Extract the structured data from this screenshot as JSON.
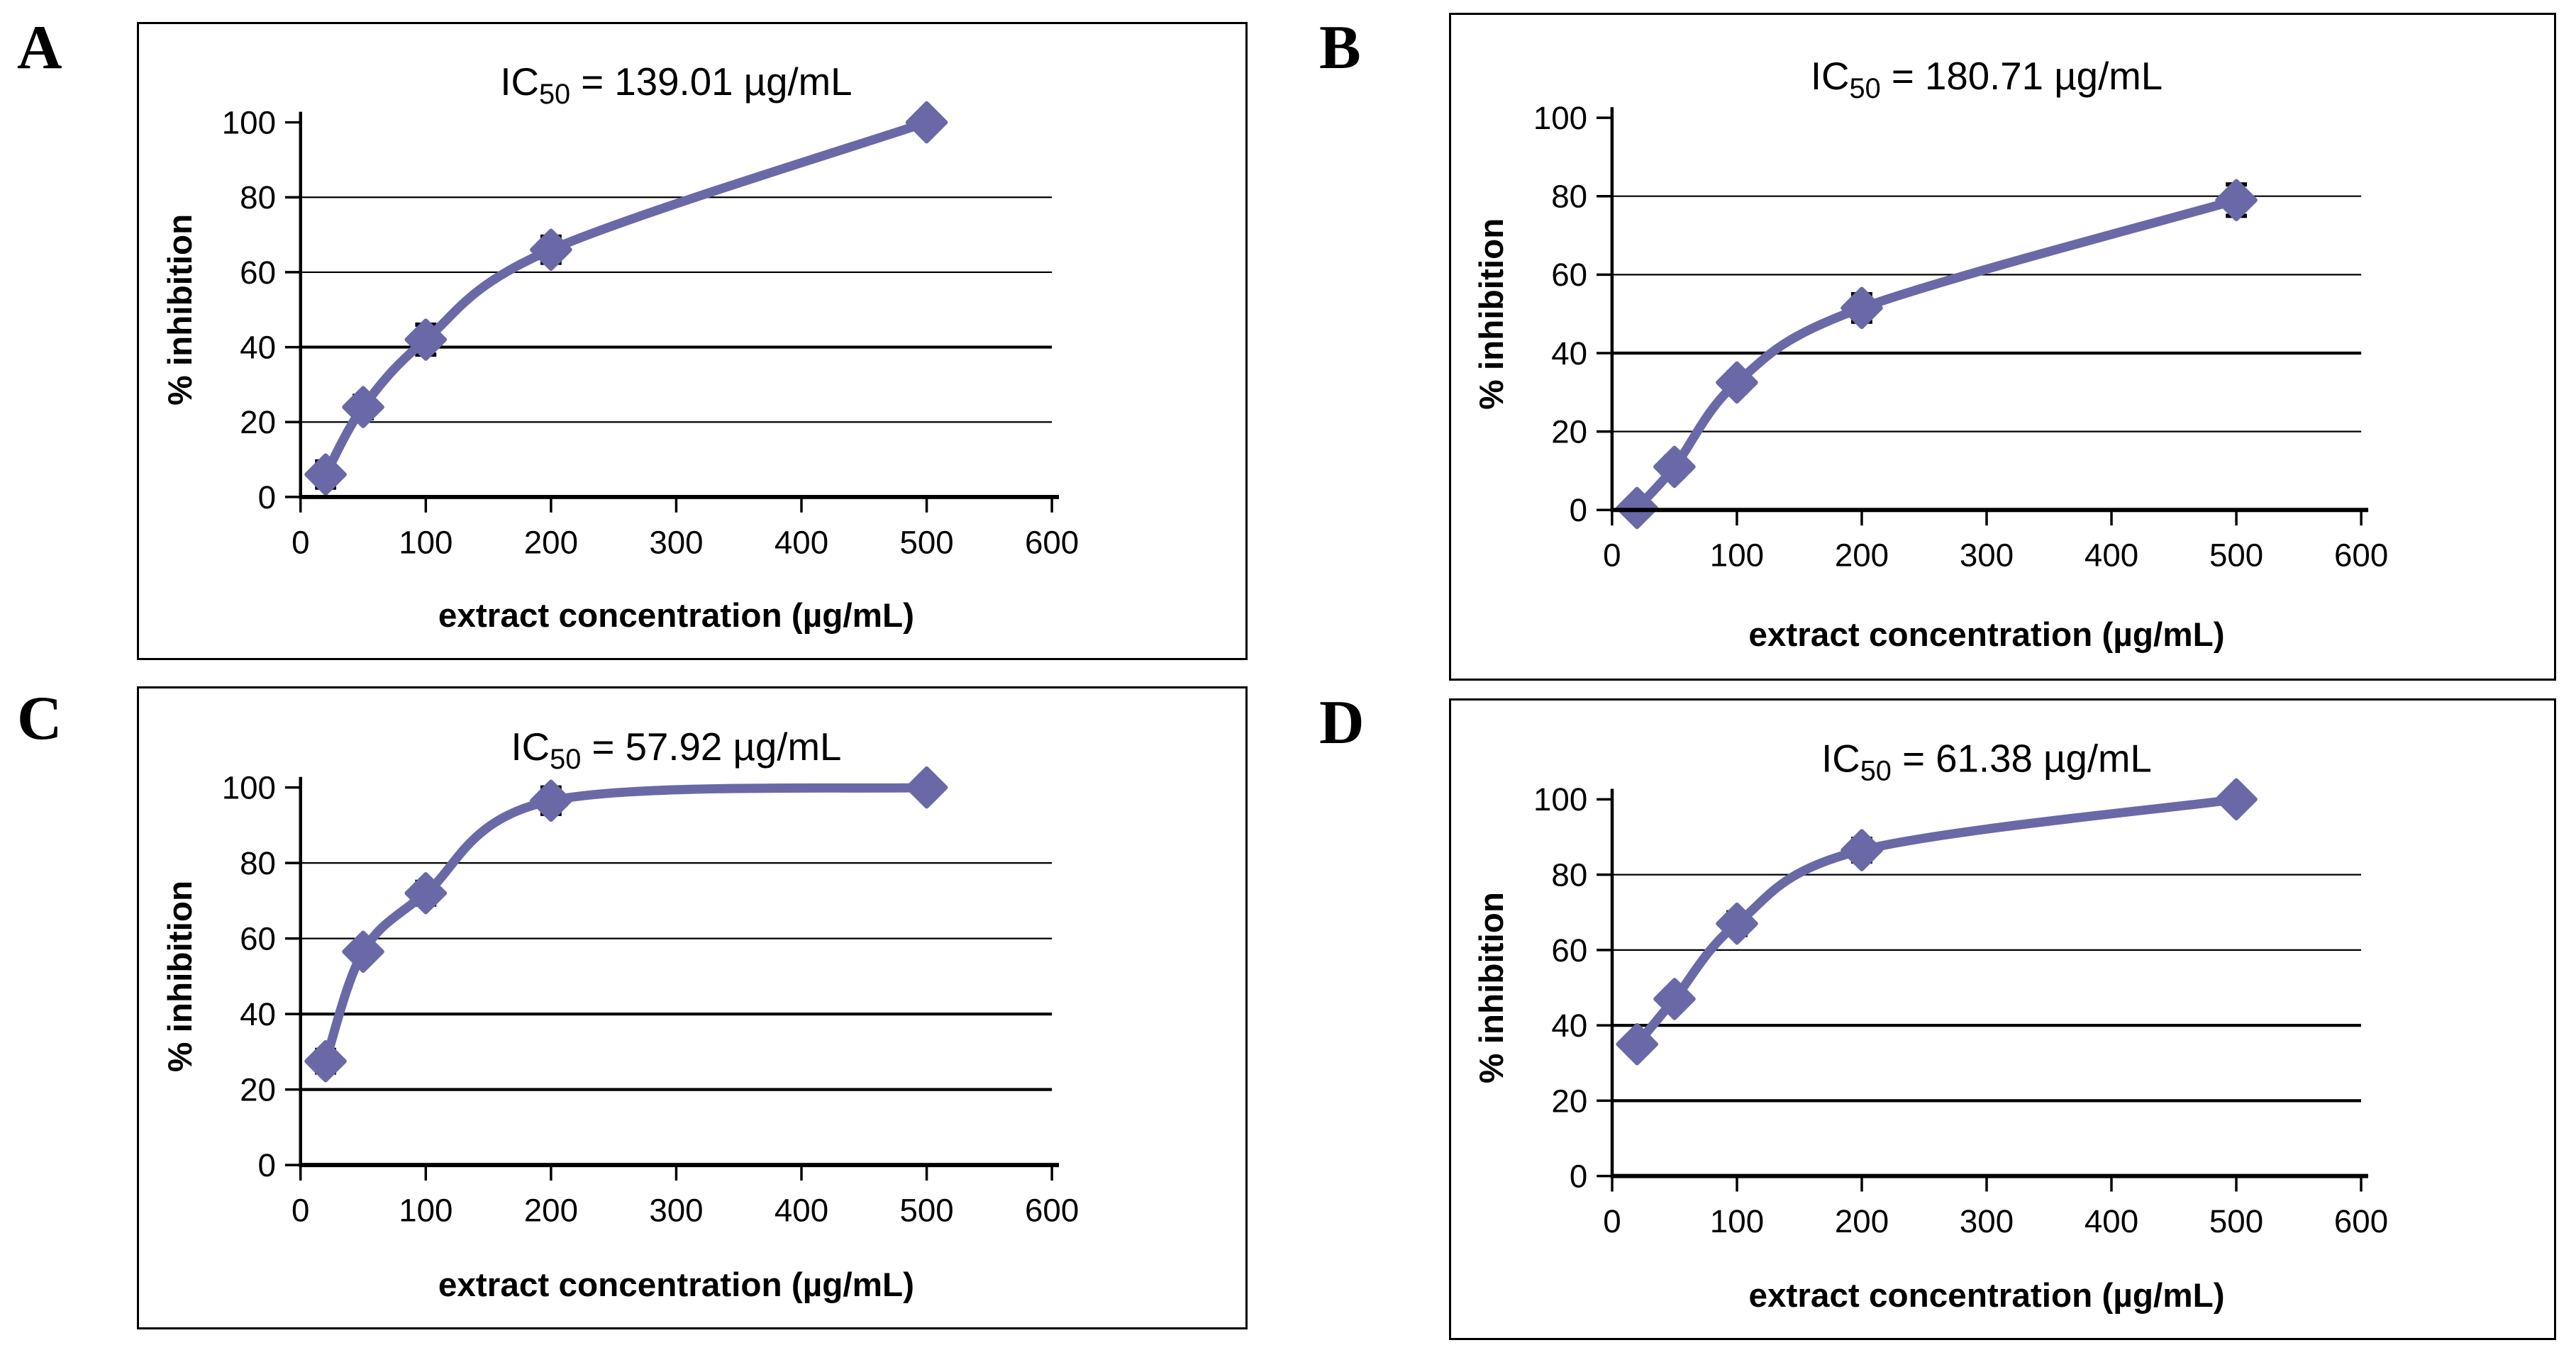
{
  "figure": {
    "description": "Four dose-response curves (A-D) of % inhibition versus extract concentration with IC50 values",
    "background": "#ffffff",
    "text_color": "#000000"
  },
  "chart_data": [
    {
      "type": "line",
      "panel": "A",
      "title": {
        "base": "IC",
        "sub": "50",
        "rest": " = 139.01 µg/mL"
      },
      "xlabel": "extract concentration (µg/mL)",
      "ylabel": "% inhibition",
      "x": [
        20,
        50,
        100,
        200,
        500
      ],
      "y": [
        6,
        24,
        42,
        66,
        100
      ],
      "yerr": [
        3.5,
        3,
        4,
        3.5,
        0
      ],
      "xlim": [
        0,
        600
      ],
      "ylim": [
        0,
        100
      ],
      "xticks": [
        0,
        100,
        200,
        300,
        400,
        500,
        600
      ],
      "yticks": [
        0,
        20,
        40,
        60,
        80,
        100
      ],
      "grid": "horizontal",
      "bold_gridlines": [
        40
      ],
      "legend": "none",
      "line_color": "#6a69a7",
      "marker": "diamond",
      "error_bar_color": "#000000"
    },
    {
      "type": "line",
      "panel": "B",
      "title": {
        "base": "IC",
        "sub": "50",
        "rest": " = 180.71 µg/mL"
      },
      "xlabel": "extract concentration (µg/mL)",
      "ylabel": "% inhibition",
      "x": [
        20,
        50,
        100,
        200,
        500
      ],
      "y": [
        0.5,
        11,
        32.5,
        51.5,
        79
      ],
      "yerr": [
        0,
        2.5,
        2.5,
        3.5,
        4
      ],
      "xlim": [
        0,
        600
      ],
      "ylim": [
        0,
        100
      ],
      "xticks": [
        0,
        100,
        200,
        300,
        400,
        500,
        600
      ],
      "yticks": [
        0,
        20,
        40,
        60,
        80,
        100
      ],
      "grid": "horizontal",
      "bold_gridlines": [
        40
      ],
      "legend": "none",
      "line_color": "#6a69a7",
      "marker": "diamond",
      "error_bar_color": "#000000"
    },
    {
      "type": "line",
      "panel": "C",
      "title": {
        "base": "IC",
        "sub": "50",
        "rest": " = 57.92 µg/mL"
      },
      "xlabel": "extract concentration (µg/mL)",
      "ylabel": "% inhibition",
      "x": [
        20,
        50,
        100,
        200,
        500
      ],
      "y": [
        27.5,
        56.5,
        72,
        96.5,
        100
      ],
      "yerr": [
        3,
        0,
        3,
        3.5,
        0
      ],
      "xlim": [
        0,
        600
      ],
      "ylim": [
        0,
        100
      ],
      "xticks": [
        0,
        100,
        200,
        300,
        400,
        500,
        600
      ],
      "yticks": [
        0,
        20,
        40,
        60,
        80,
        100
      ],
      "grid": "horizontal",
      "bold_gridlines": [
        20,
        40
      ],
      "legend": "none",
      "line_color": "#6a69a7",
      "marker": "diamond",
      "error_bar_color": "#000000"
    },
    {
      "type": "line",
      "panel": "D",
      "title": {
        "base": "IC",
        "sub": "50",
        "rest": " = 61.38 µg/mL"
      },
      "xlabel": "extract concentration (µg/mL)",
      "ylabel": "% inhibition",
      "x": [
        20,
        50,
        100,
        200,
        500
      ],
      "y": [
        35,
        47,
        67,
        86.5,
        100
      ],
      "yerr": [
        2.5,
        2.5,
        3,
        3,
        0
      ],
      "xlim": [
        0,
        600
      ],
      "ylim": [
        0,
        100
      ],
      "xticks": [
        0,
        100,
        200,
        300,
        400,
        500,
        600
      ],
      "yticks": [
        0,
        20,
        40,
        60,
        80,
        100
      ],
      "grid": "horizontal",
      "bold_gridlines": [
        20,
        40
      ],
      "legend": "none",
      "line_color": "#6a69a7",
      "marker": "diamond",
      "error_bar_color": "#000000"
    }
  ]
}
